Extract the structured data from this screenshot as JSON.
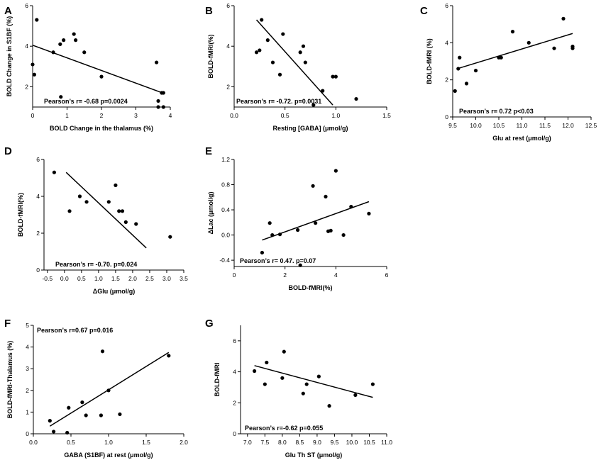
{
  "chart_data": [
    {
      "panel": "A",
      "type": "scatter",
      "xlabel": "BOLD Change in the thalamus (%)",
      "ylabel": "BOLD Change in S1BF (%)",
      "xlim": [
        0,
        4
      ],
      "ylim": [
        1,
        6
      ],
      "xticks": [
        0,
        1,
        2,
        3,
        4
      ],
      "yticks": [
        2,
        4,
        6
      ],
      "tick_labels_x": [
        "0",
        "1",
        "2",
        "3",
        "4"
      ],
      "tick_labels_y": [
        "2",
        "4",
        "6"
      ],
      "annotation": "Pearson’s r= -0.68  p=0.0024",
      "x": [
        0.0,
        0.05,
        0.12,
        0.6,
        0.8,
        0.82,
        0.9,
        1.2,
        1.25,
        1.5,
        2.0,
        3.6,
        3.65,
        3.65,
        3.75,
        3.8,
        3.8
      ],
      "y": [
        3.1,
        2.6,
        5.3,
        3.7,
        4.1,
        1.5,
        4.3,
        4.6,
        4.3,
        3.7,
        2.5,
        3.2,
        1.3,
        1.0,
        1.7,
        1.7,
        1.0
      ],
      "fit": [
        [
          0,
          4.05
        ],
        [
          3.8,
          1.68
        ]
      ]
    },
    {
      "panel": "B",
      "type": "scatter",
      "xlabel": "Resting [GABA] (μmol/g)",
      "ylabel": "BOLD-fMRI(%)",
      "xlim": [
        0,
        1.5
      ],
      "ylim": [
        1,
        6
      ],
      "xticks": [
        0,
        0.5,
        1.0,
        1.5
      ],
      "yticks": [
        2,
        4,
        6
      ],
      "tick_labels_x": [
        "0.0",
        "0.5",
        "1.0",
        "1.5"
      ],
      "tick_labels_y": [
        "2",
        "4",
        "6"
      ],
      "annotation": "Pearson’s r= -0.72. p=0.0031",
      "x": [
        0.22,
        0.25,
        0.27,
        0.33,
        0.38,
        0.45,
        0.48,
        0.65,
        0.68,
        0.7,
        0.78,
        0.87,
        0.97,
        1.0,
        1.2
      ],
      "y": [
        3.7,
        3.8,
        5.3,
        4.3,
        3.2,
        2.6,
        4.6,
        3.7,
        4.0,
        3.2,
        1.1,
        1.8,
        2.5,
        2.5,
        1.4
      ],
      "fit": [
        [
          0.22,
          5.3
        ],
        [
          0.97,
          1.1
        ]
      ]
    },
    {
      "panel": "C",
      "type": "scatter",
      "xlabel": "Glu at rest (μmol/g)",
      "ylabel": "BOLD-fMRI (%)",
      "xlim": [
        9.5,
        12.5
      ],
      "ylim": [
        0,
        6
      ],
      "xticks": [
        9.5,
        10.0,
        10.5,
        11.0,
        11.5,
        12.0,
        12.5
      ],
      "yticks": [
        0,
        2,
        4,
        6
      ],
      "tick_labels_x": [
        "9.5",
        "10.0",
        "10.5",
        "11.0",
        "11.5",
        "12.0",
        "12.5"
      ],
      "tick_labels_y": [
        "0",
        "2",
        "4",
        "6"
      ],
      "annotation": "Pearson’s r= 0.72  p<0.03",
      "x": [
        9.55,
        9.62,
        9.65,
        9.8,
        10.0,
        10.5,
        10.55,
        10.8,
        11.15,
        11.7,
        11.9,
        12.1,
        12.1
      ],
      "y": [
        1.4,
        2.6,
        3.2,
        1.8,
        2.5,
        3.2,
        3.2,
        4.6,
        4.0,
        3.7,
        5.3,
        3.7,
        3.8
      ],
      "fit": [
        [
          9.6,
          2.6
        ],
        [
          12.1,
          4.5
        ]
      ]
    },
    {
      "panel": "D",
      "type": "scatter",
      "xlabel": "ΔGlu (μmol/g)",
      "ylabel": "BOLD-fMRI(%)",
      "xlim": [
        -0.6,
        3.5
      ],
      "ylim": [
        0,
        6
      ],
      "xticks": [
        -0.5,
        0.0,
        0.5,
        1.0,
        1.5,
        2.0,
        2.5,
        3.0,
        3.5
      ],
      "yticks": [
        0,
        2,
        4,
        6
      ],
      "tick_labels_x": [
        "-0.5",
        "0.0",
        "0.5",
        "1.0",
        "1.5",
        "2.0",
        "2.5",
        "3.0",
        "3.5"
      ],
      "tick_labels_y": [
        "0",
        "2",
        "4",
        "6"
      ],
      "annotation": "Pearson’s r= -0.70. p=0.024",
      "x": [
        -0.3,
        0.15,
        0.45,
        0.65,
        1.3,
        1.5,
        1.6,
        1.7,
        1.8,
        2.1,
        3.1
      ],
      "y": [
        5.3,
        3.2,
        4.0,
        3.7,
        3.7,
        4.6,
        3.2,
        3.2,
        2.6,
        2.5,
        1.8
      ],
      "fit": [
        [
          0.05,
          5.3
        ],
        [
          2.4,
          1.2
        ]
      ]
    },
    {
      "panel": "E",
      "type": "scatter",
      "xlabel": "BOLD-fMRI(%)",
      "ylabel": "ΔLac (μmol/g)",
      "xlim": [
        0,
        6
      ],
      "ylim": [
        -0.5,
        1.2
      ],
      "xticks": [
        0,
        2,
        4,
        6
      ],
      "yticks": [
        -0.4,
        0.0,
        0.4,
        0.8,
        1.2
      ],
      "tick_labels_x": [
        "0",
        "2",
        "4",
        "6"
      ],
      "tick_labels_y": [
        "-0.4",
        "0.0",
        "0.4",
        "0.8",
        "1.2"
      ],
      "annotation": "Pearson’s r= 0.47. p=0.07",
      "x": [
        1.1,
        1.4,
        1.5,
        1.8,
        2.5,
        2.6,
        3.1,
        3.2,
        3.6,
        3.7,
        3.8,
        4.0,
        4.3,
        4.6,
        5.3
      ],
      "y": [
        -0.28,
        0.19,
        0.0,
        0.01,
        0.08,
        -0.48,
        0.78,
        0.19,
        0.61,
        0.06,
        0.07,
        1.02,
        0.0,
        0.45,
        0.34
      ],
      "fit": [
        [
          1.1,
          -0.08
        ],
        [
          5.3,
          0.53
        ]
      ]
    },
    {
      "panel": "F",
      "type": "scatter",
      "xlabel": "GABA (S1BF) at rest (μmol/g)",
      "ylabel": "BOLD-fMRI-Thalamus (%)",
      "xlim": [
        0,
        2
      ],
      "ylim": [
        0,
        5
      ],
      "xticks": [
        0,
        0.5,
        1.0,
        1.5,
        2.0
      ],
      "yticks": [
        0,
        1,
        2,
        3,
        4,
        5
      ],
      "tick_labels_x": [
        "0.0",
        "0.5",
        "1.0",
        "1.5",
        "2.0"
      ],
      "tick_labels_y": [
        "0",
        "1",
        "2",
        "3",
        "4",
        "5"
      ],
      "annotation": "Pearson’s r=0.67  p=0.016",
      "x": [
        0.22,
        0.27,
        0.45,
        0.47,
        0.65,
        0.7,
        0.9,
        0.92,
        1.0,
        1.15,
        1.8
      ],
      "y": [
        0.6,
        0.1,
        0.05,
        1.2,
        1.45,
        0.85,
        0.85,
        3.8,
        2.0,
        0.9,
        3.6
      ],
      "fit": [
        [
          0.22,
          0.35
        ],
        [
          1.8,
          3.75
        ]
      ]
    },
    {
      "panel": "G",
      "type": "scatter",
      "xlabel": "Glu Th ST (μmol/g)",
      "ylabel": "BOLD-fMRI",
      "xlim": [
        6.8,
        11.0
      ],
      "ylim": [
        0,
        7
      ],
      "xticks": [
        7.0,
        7.5,
        8.0,
        8.5,
        9.0,
        9.5,
        10.0,
        10.5,
        11.0
      ],
      "yticks": [
        0,
        2,
        4,
        6
      ],
      "tick_labels_x": [
        "7.0",
        "7.5",
        "8.0",
        "8.5",
        "9.0",
        "9.5",
        "10.0",
        "10.5",
        "11.0"
      ],
      "tick_labels_y": [
        "0",
        "2",
        "4",
        "6"
      ],
      "annotation": "Pearson’s r=-0.62  p=0.055",
      "x": [
        7.2,
        7.5,
        7.55,
        8.0,
        8.05,
        8.6,
        8.7,
        9.05,
        9.35,
        10.1,
        10.6
      ],
      "y": [
        4.05,
        3.2,
        4.6,
        3.6,
        5.3,
        2.6,
        3.2,
        3.7,
        1.8,
        2.5,
        3.2
      ],
      "fit": [
        [
          7.2,
          4.4
        ],
        [
          10.6,
          2.35
        ]
      ]
    }
  ]
}
